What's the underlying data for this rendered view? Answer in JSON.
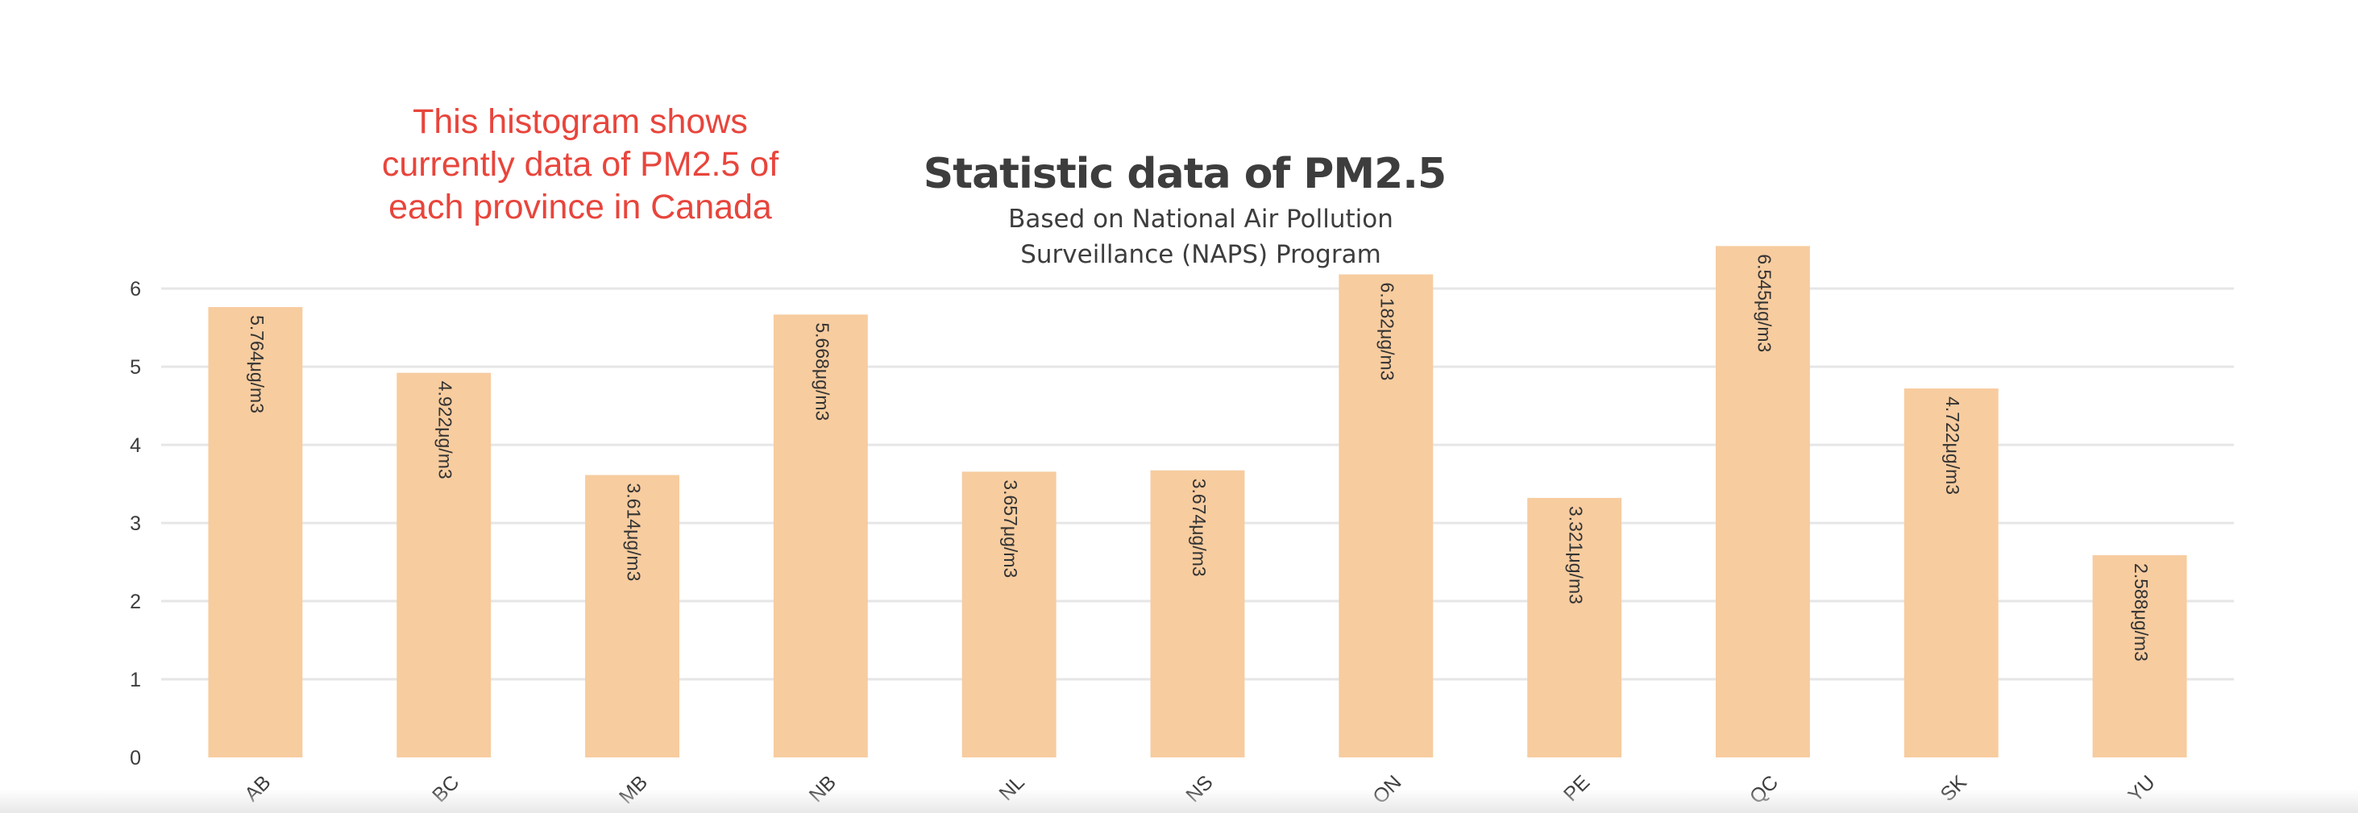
{
  "annotation": "This histogram shows currently data of PM2.5 of each province in Canada",
  "chart_data": {
    "type": "bar",
    "title": "Statistic data of PM2.5",
    "subtitle": "Based on National Air Pollution Surveillance (NAPS) Program",
    "categories": [
      "AB",
      "BC",
      "MB",
      "NB",
      "NL",
      "NS",
      "ON",
      "PE",
      "QC",
      "SK",
      "YU"
    ],
    "values": [
      5.764,
      4.922,
      3.614,
      5.668,
      3.657,
      3.674,
      6.182,
      3.321,
      6.545,
      4.722,
      2.588
    ],
    "data_labels": [
      "5.764μg/m3",
      "4.922μg/m3",
      "3.614μg/m3",
      "5.668μg/m3",
      "3.657μg/m3",
      "3.674μg/m3",
      "6.182μg/m3",
      "3.321μg/m3",
      "6.545μg/m3",
      "4.722μg/m3",
      "2.588μg/m3"
    ],
    "yticks": [
      0,
      1,
      2,
      3,
      4,
      5,
      6
    ],
    "ylim": [
      0,
      6.6
    ],
    "grid": true,
    "bar_color": "#f7cc9f",
    "grid_color": "#e6e6e6",
    "label_color": "#3d3d3d"
  }
}
